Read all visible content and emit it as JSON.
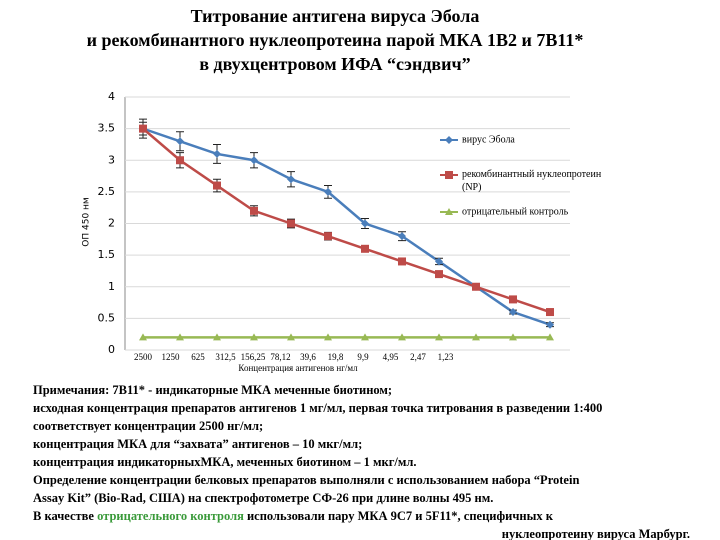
{
  "title": [
    "Титрование антигена вируса Эбола",
    "и рекомбинантного нуклеопротеина парой МКА 1В2 и 7В11*",
    "в двухцентровом ИФА “сэндвич”"
  ],
  "chart_data": {
    "type": "line",
    "ylabel": "ОП 450 нм",
    "xlabel": "Концентрация антигенов нг/мл",
    "categories": [
      "2500",
      "1250",
      "625",
      "312,5",
      "156,25",
      "78,12",
      "39,6",
      "19,8",
      "9,9",
      "4,95",
      "2,47",
      "1,23"
    ],
    "ylim": [
      0,
      4
    ],
    "yticks": [
      0,
      0.5,
      1,
      1.5,
      2,
      2.5,
      3,
      3.5,
      4
    ],
    "grid": true,
    "legend": "right",
    "series": [
      {
        "name": "вирус Эбола",
        "color": "#4a7ebb",
        "marker": "diamond",
        "values": [
          3.5,
          3.3,
          3.1,
          3.0,
          2.7,
          2.5,
          2.0,
          1.8,
          1.4,
          1.0,
          0.6,
          0.4
        ],
        "errors": [
          0.15,
          0.15,
          0.15,
          0.12,
          0.12,
          0.1,
          0.08,
          0.07,
          0.05,
          0.03,
          0.03,
          0.03
        ]
      },
      {
        "name": "рекомбинантный нуклеопротеин (NP)",
        "color": "#be4b48",
        "marker": "square",
        "values": [
          3.5,
          3.0,
          2.6,
          2.2,
          2.0,
          1.8,
          1.6,
          1.4,
          1.2,
          1.0,
          0.8,
          0.6
        ],
        "errors": [
          0.1,
          0.12,
          0.1,
          0.08,
          0.07,
          0.06,
          0.05,
          0.04,
          0.03,
          0.03,
          0.03,
          0.03
        ]
      },
      {
        "name": "отрицательный контроль",
        "color": "#98b954",
        "marker": "triangle",
        "values": [
          0.2,
          0.2,
          0.2,
          0.2,
          0.2,
          0.2,
          0.2,
          0.2,
          0.2,
          0.2,
          0.2,
          0.2
        ]
      }
    ]
  },
  "notes": {
    "lines": [
      "Примечания: 7В11* - индикаторные МКА меченные биотином;",
      "исходная концентрация препаратов антигенов 1 мг/мл, первая точка титрования в разведении 1:400",
      "соответствует концентрации 2500 нг/мл;",
      "концентрация МКА для “захвата” антигенов – 10 мкг/мл;",
      "концентрация индикаторныхМКА, меченных биотином – 1 мкг/мл.",
      "Определение концентрации белковых препаратов выполняли с использованием набора “Protein",
      "Assay Kit” (Bio-Rad, США) на спектрофотометре СФ-26  при длине волны 495 нм."
    ],
    "last": [
      "В качестве ",
      "отрицательного контроля",
      " использовали пару МКА 9С7 и 5F11*, специфичных к"
    ],
    "end": "нуклеопротеину вируса Марбург."
  }
}
